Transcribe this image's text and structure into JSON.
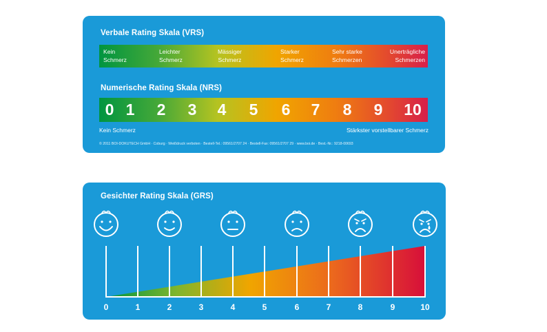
{
  "vrs": {
    "title": "Verbale Rating Skala (VRS)",
    "labels": [
      {
        "line1": "Kein",
        "line2": "Schmerz"
      },
      {
        "line1": "Leichter",
        "line2": "Schmerz"
      },
      {
        "line1": "Mässiger",
        "line2": "Schmerz"
      },
      {
        "line1": "Starker",
        "line2": "Schmerz"
      },
      {
        "line1": "Sehr starke",
        "line2": "Schmerzen"
      },
      {
        "line1": "Unerträgliche",
        "line2": "Schmerzen"
      }
    ]
  },
  "nrs": {
    "title": "Numerische Rating Skala (NRS)",
    "numbers": [
      "0",
      "1",
      "2",
      "3",
      "4",
      "5",
      "6",
      "7",
      "8",
      "9",
      "10"
    ],
    "left_caption": "Kein Schmerz",
    "right_caption": "Stärkster vorstellbarer Schmerz"
  },
  "copyright": "© 2011 BOI-DOKUTECH GmbH · Coburg · Weißdruck verboten · Bestell-Tel.: 09561/2707 24 · Bestell-Fax: 09561/2707 29 · www.boi.de · Best.-Nr.: 9218-00693",
  "grs": {
    "title": "Gesichter Rating Skala (GRS)",
    "numbers": [
      "0",
      "1",
      "2",
      "3",
      "4",
      "5",
      "6",
      "7",
      "8",
      "9",
      "10"
    ],
    "faces": [
      "very-happy-face-icon",
      "happy-face-icon",
      "neutral-face-icon",
      "sad-face-icon",
      "distressed-face-icon",
      "crying-face-icon"
    ]
  },
  "colors": {
    "card": "#1a9ad8",
    "gradient_start": "#009540",
    "gradient_mid": "#f0a500",
    "gradient_end": "#d71f4a"
  }
}
